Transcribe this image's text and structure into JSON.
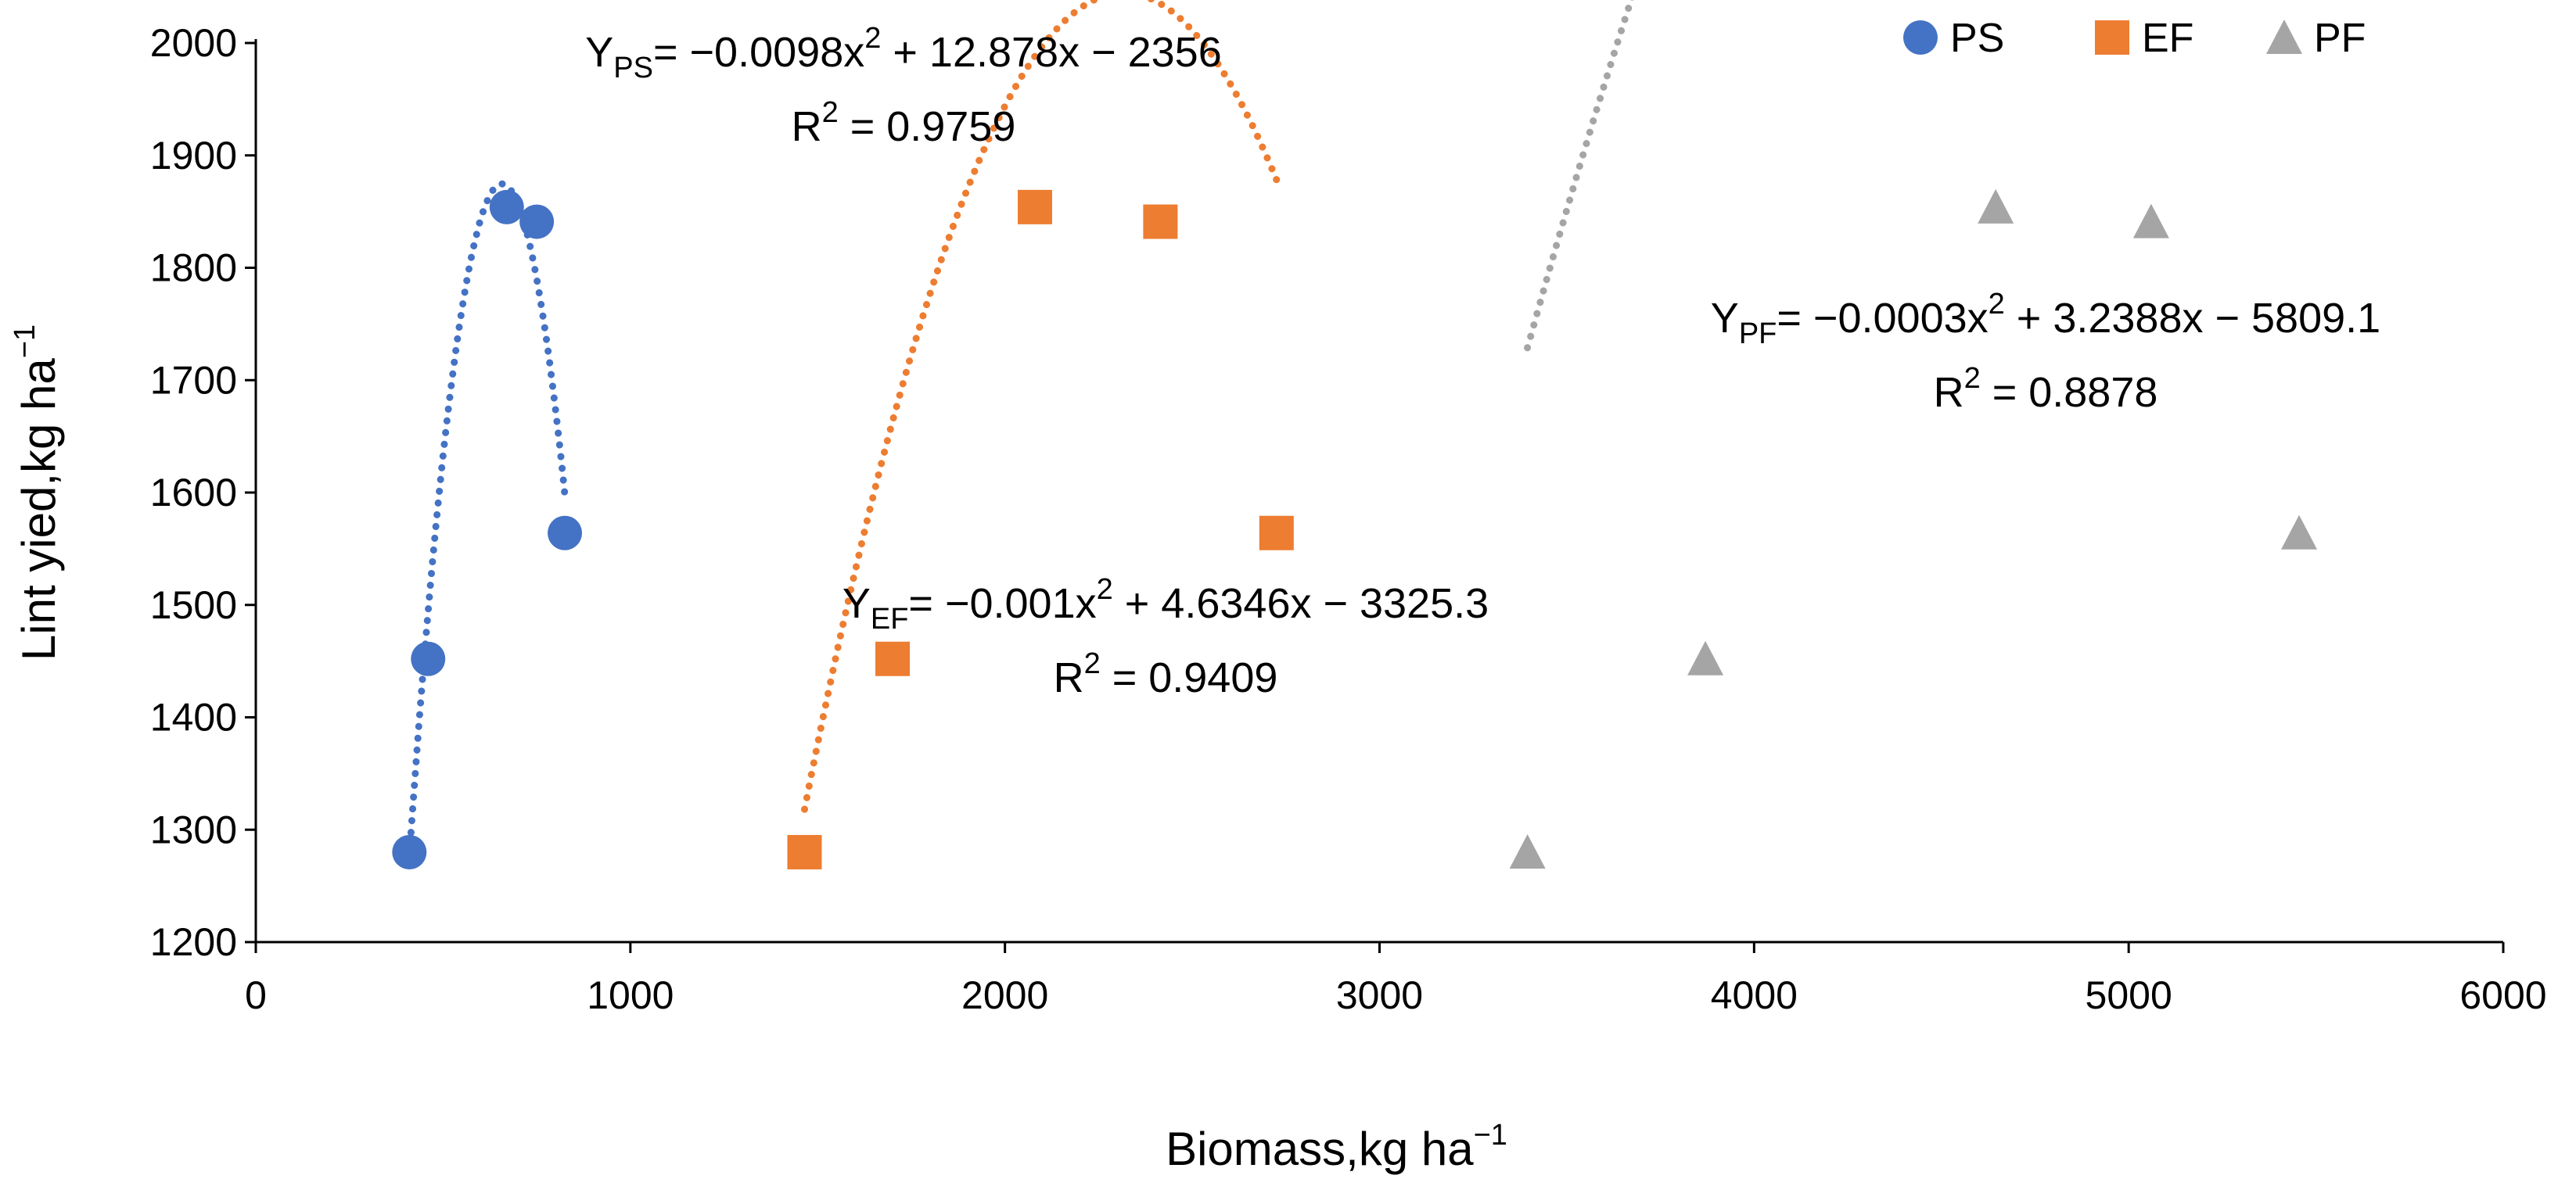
{
  "chart_data": {
    "type": "scatter",
    "xlabel": "Biomass,kg ha",
    "xlabel_sup": "−1",
    "ylabel": "Lint yied,kg ha",
    "ylabel_sup": "−1",
    "xlim": [
      0,
      6000
    ],
    "ylim": [
      1200,
      2000
    ],
    "x_ticks": [
      "0",
      "1000",
      "2000",
      "3000",
      "4000",
      "5000",
      "6000"
    ],
    "y_ticks": [
      "1200",
      "1300",
      "1400",
      "1500",
      "1600",
      "1700",
      "1800",
      "1900",
      "2000"
    ],
    "grid": false,
    "legend_position": "top-right",
    "series": [
      {
        "name": "PS",
        "marker": "circle",
        "color": "#4472C4",
        "points": [
          {
            "x": 410,
            "y": 1280
          },
          {
            "x": 460,
            "y": 1452
          },
          {
            "x": 670,
            "y": 1854
          },
          {
            "x": 750,
            "y": 1841
          },
          {
            "x": 825,
            "y": 1564
          }
        ],
        "trendline": {
          "type": "polynomial",
          "a": -0.0098,
          "b": 12.878,
          "c": -2356,
          "x_range": [
            410,
            825
          ]
        },
        "equation": {
          "prefix": "Y",
          "sub": "PS",
          "rest1": "= −0.0098x",
          "sup": "2",
          "rest2": " + 12.878x − 2356",
          "r2_label": "R",
          "r2_sup": "2",
          "r2_value": " = 0.9759"
        }
      },
      {
        "name": "EF",
        "marker": "square",
        "color": "#ED7D31",
        "points": [
          {
            "x": 1465,
            "y": 1280
          },
          {
            "x": 1700,
            "y": 1452
          },
          {
            "x": 2080,
            "y": 1854
          },
          {
            "x": 2415,
            "y": 1841
          },
          {
            "x": 2725,
            "y": 1564
          }
        ],
        "trendline": {
          "type": "polynomial",
          "a": -0.001,
          "b": 4.6346,
          "c": -3325.3,
          "x_range": [
            1465,
            2725
          ]
        },
        "equation": {
          "prefix": "Y",
          "sub": "EF",
          "rest1": "= −0.001x",
          "sup": "2",
          "rest2": " + 4.6346x − 3325.3",
          "r2_label": "R",
          "r2_sup": "2",
          "r2_value": " = 0.9409"
        }
      },
      {
        "name": "PF",
        "marker": "triangle",
        "color": "#A5A5A5",
        "points": [
          {
            "x": 3395,
            "y": 1280
          },
          {
            "x": 3870,
            "y": 1452
          },
          {
            "x": 4645,
            "y": 1854
          },
          {
            "x": 5060,
            "y": 1841
          },
          {
            "x": 5455,
            "y": 1564
          }
        ],
        "trendline": {
          "type": "polynomial",
          "a": -0.0003,
          "b": 3.2388,
          "c": -5809.1,
          "x_range": [
            3395,
            5455
          ]
        },
        "equation": {
          "prefix": "Y",
          "sub": "PF",
          "rest1": "= −0.0003x",
          "sup": "2",
          "rest2": " + 3.2388x − 5809.1",
          "r2_label": "R",
          "r2_sup": "2",
          "r2_value": " = 0.8878"
        }
      }
    ]
  }
}
